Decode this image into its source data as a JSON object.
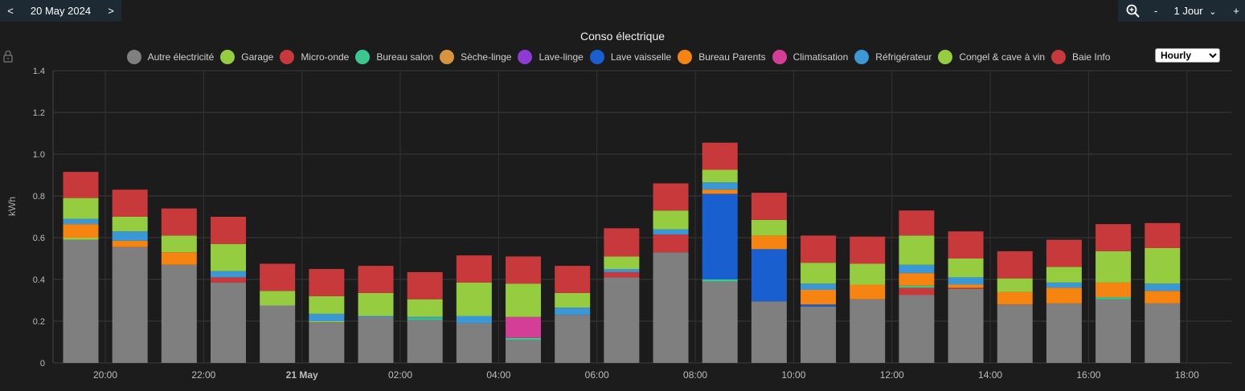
{
  "nav": {
    "prev": "<",
    "date": "20 May 2024",
    "next": ">",
    "zoom_icon": "zoom-in-icon",
    "minus": "-",
    "period": "1 Jour",
    "plus": "+"
  },
  "resolution": {
    "selected": "Hourly"
  },
  "chart_data": {
    "type": "bar",
    "stacked": true,
    "title": "Conso électrique",
    "ylabel": "kWh",
    "ylim": [
      0,
      1.4
    ],
    "yticks": [
      "0",
      "0.2",
      "0.4",
      "0.6",
      "0.8",
      "1.0",
      "1.2",
      "1.4"
    ],
    "xticks": [
      {
        "label": "20:00",
        "bold": false
      },
      {
        "label": "22:00",
        "bold": false
      },
      {
        "label": "21 May",
        "bold": true
      },
      {
        "label": "02:00",
        "bold": false
      },
      {
        "label": "04:00",
        "bold": false
      },
      {
        "label": "06:00",
        "bold": false
      },
      {
        "label": "08:00",
        "bold": false
      },
      {
        "label": "10:00",
        "bold": false
      },
      {
        "label": "12:00",
        "bold": false
      },
      {
        "label": "14:00",
        "bold": false
      },
      {
        "label": "16:00",
        "bold": false
      },
      {
        "label": "18:00",
        "bold": false
      }
    ],
    "grid": true,
    "legend_position": "top",
    "categories": [
      "20:00",
      "21:00",
      "22:00",
      "23:00",
      "00:00",
      "01:00",
      "02:00",
      "03:00",
      "04:00",
      "05:00",
      "06:00",
      "07:00",
      "08:00",
      "09:00",
      "10:00",
      "11:00",
      "12:00",
      "13:00",
      "14:00",
      "15:00",
      "16:00",
      "17:00",
      "18:00"
    ],
    "series": [
      {
        "name": "Autre électricité",
        "color": "#7f7f7f",
        "values": [
          0.59,
          0.555,
          0.47,
          0.385,
          0.275,
          0.195,
          0.22,
          0.205,
          0.19,
          0.11,
          0.23,
          0.41,
          0.53,
          0.39,
          0.295,
          0.27,
          0.305,
          0.325,
          0.355,
          0.28,
          0.285,
          0.305,
          0.285
        ]
      },
      {
        "name": "Garage",
        "color": "#96cd40",
        "values": [
          0.01,
          0,
          0,
          0,
          0,
          0.005,
          0,
          0,
          0,
          0,
          0,
          0,
          0,
          0,
          0,
          0,
          0,
          0,
          0,
          0,
          0,
          0,
          0
        ]
      },
      {
        "name": "Micro-onde",
        "color": "#c8393b",
        "values": [
          0,
          0,
          0,
          0.025,
          0,
          0,
          0,
          0,
          0,
          0,
          0,
          0.025,
          0.085,
          0,
          0,
          0,
          0,
          0.035,
          0.005,
          0,
          0,
          0,
          0
        ]
      },
      {
        "name": "Bureau salon",
        "color": "#3bc88e",
        "values": [
          0,
          0,
          0,
          0,
          0,
          0,
          0,
          0.01,
          0,
          0.01,
          0,
          0,
          0,
          0.01,
          0,
          0,
          0,
          0.01,
          0,
          0,
          0,
          0.01,
          0
        ]
      },
      {
        "name": "Sèche-linge",
        "color": "#d6953c",
        "values": [
          0,
          0,
          0,
          0,
          0,
          0,
          0,
          0,
          0,
          0,
          0,
          0,
          0,
          0,
          0,
          0,
          0,
          0,
          0,
          0,
          0,
          0,
          0
        ]
      },
      {
        "name": "Lave-linge",
        "color": "#8e3bd6",
        "values": [
          0,
          0,
          0,
          0,
          0,
          0,
          0,
          0,
          0,
          0,
          0,
          0,
          0,
          0,
          0,
          0,
          0,
          0,
          0,
          0,
          0,
          0,
          0
        ]
      },
      {
        "name": "Lave vaisselle",
        "color": "#1a5fd0",
        "values": [
          0,
          0,
          0,
          0,
          0,
          0,
          0,
          0,
          0,
          0,
          0,
          0,
          0,
          0.41,
          0.25,
          0.01,
          0,
          0,
          0,
          0,
          0,
          0,
          0
        ]
      },
      {
        "name": "Bureau Parents",
        "color": "#f58411",
        "values": [
          0.065,
          0.03,
          0.06,
          0,
          0,
          0,
          0,
          0,
          0,
          0,
          0,
          0,
          0,
          0.02,
          0.065,
          0.07,
          0.07,
          0.06,
          0.015,
          0.06,
          0.075,
          0.07,
          0.06
        ]
      },
      {
        "name": "Climatisation",
        "color": "#d43e96",
        "values": [
          0,
          0,
          0,
          0,
          0,
          0,
          0,
          0,
          0,
          0.1,
          0,
          0,
          0,
          0,
          0,
          0,
          0,
          0,
          0,
          0,
          0,
          0,
          0
        ]
      },
      {
        "name": "Réfrigérateur",
        "color": "#3c98d4",
        "values": [
          0.025,
          0.045,
          0,
          0.03,
          0,
          0.035,
          0.005,
          0.005,
          0.035,
          0,
          0.035,
          0.015,
          0.025,
          0.035,
          0,
          0.03,
          0,
          0.04,
          0.035,
          0,
          0.025,
          0,
          0.035
        ]
      },
      {
        "name": "Congel & cave à vin",
        "color": "#96cd40",
        "values": [
          0.1,
          0.07,
          0.08,
          0.13,
          0.07,
          0.085,
          0.11,
          0.085,
          0.16,
          0.16,
          0.07,
          0.06,
          0.09,
          0.06,
          0.075,
          0.1,
          0.1,
          0.14,
          0.09,
          0.065,
          0.075,
          0.15,
          0.17
        ]
      },
      {
        "name": "Baie Info",
        "color": "#c8393b",
        "values": [
          0.125,
          0.13,
          0.13,
          0.13,
          0.13,
          0.13,
          0.13,
          0.13,
          0.13,
          0.13,
          0.13,
          0.135,
          0.13,
          0.13,
          0.13,
          0.13,
          0.13,
          0.12,
          0.13,
          0.13,
          0.13,
          0.13,
          0.12
        ]
      }
    ]
  }
}
